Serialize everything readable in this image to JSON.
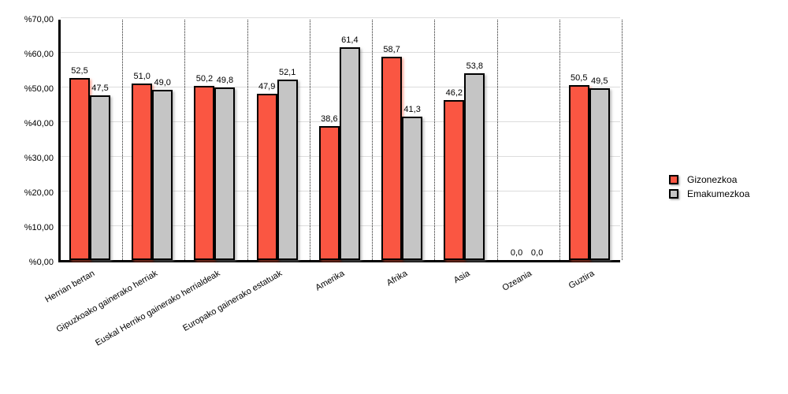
{
  "chart_data": {
    "type": "bar",
    "title": "",
    "xlabel": "",
    "ylabel": "",
    "categories": [
      "Herrian bertan",
      "Gipuzkoako gainerako herriak",
      "Euskal Herriko gainerako herrialdeak",
      "Europako gainerako estatuak",
      "Amerika",
      "Afrika",
      "Asia",
      "Ozeania",
      "Guztira"
    ],
    "series": [
      {
        "name": "Gizonezkoa",
        "color": "#FA5642",
        "values": [
          52.5,
          51.0,
          50.2,
          47.9,
          38.6,
          58.7,
          46.2,
          0.0,
          50.5
        ]
      },
      {
        "name": "Emakumezkoa",
        "color": "#C5C5C5",
        "values": [
          47.5,
          49.0,
          49.8,
          52.1,
          61.4,
          41.3,
          53.8,
          0.0,
          49.5
        ]
      }
    ],
    "value_label_format": "one-decimal-comma",
    "ylim": [
      0,
      70
    ],
    "y_tick_step": 10,
    "y_tick_labels": [
      "%0,00",
      "%10,00",
      "%20,00",
      "%30,00",
      "%40,00",
      "%50,00",
      "%60,00",
      "%70,00"
    ],
    "grid": true,
    "grid_color": "#DCDCDC",
    "axis_color": "#000000",
    "background_color": "#FFFFFF",
    "legend_position": "right"
  }
}
